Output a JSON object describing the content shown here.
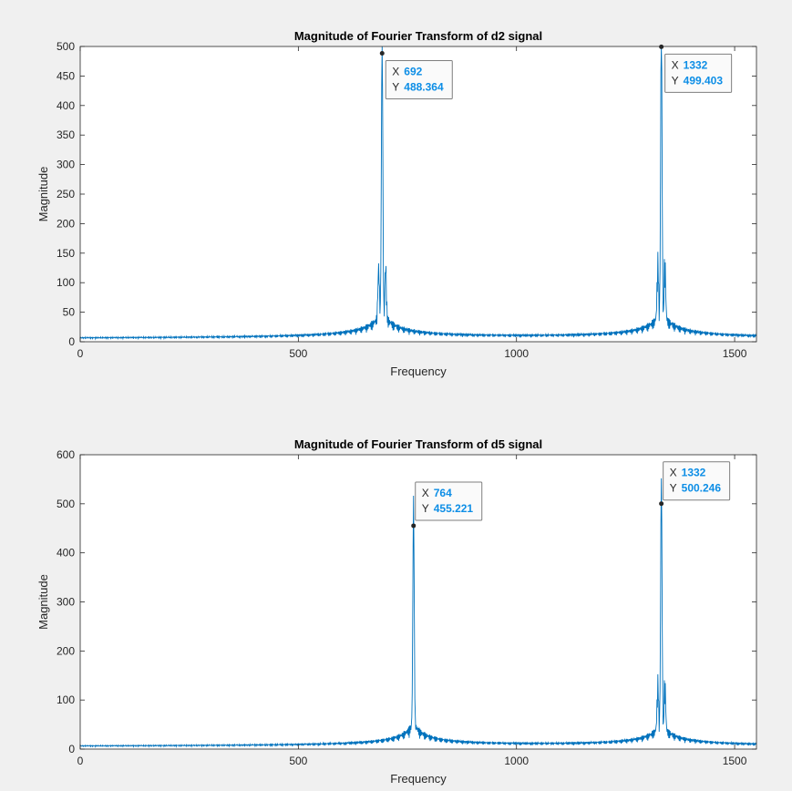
{
  "figure": {
    "background": "#f0f0f0",
    "line_color": "#0072bd"
  },
  "chart_data": [
    {
      "type": "line",
      "title": "Magnitude of Fourier Transform of d2 signal",
      "xlabel": "Frequency",
      "ylabel": "Magnitude",
      "xlim": [
        0,
        1550
      ],
      "ylim": [
        0,
        500
      ],
      "xticks": [
        0,
        500,
        1000,
        1500
      ],
      "yticks": [
        0,
        50,
        100,
        150,
        200,
        250,
        300,
        350,
        400,
        450,
        500
      ],
      "grid": false,
      "peaks": [
        {
          "x": 692,
          "y": 488.364,
          "sidelobe": 100
        },
        {
          "x": 1332,
          "y": 499.403,
          "sidelobe": 107
        }
      ],
      "datatips": [
        {
          "x_label": "692",
          "y_label": "488.364"
        },
        {
          "x_label": "1332",
          "y_label": "499.403"
        }
      ]
    },
    {
      "type": "line",
      "title": "Magnitude of Fourier Transform of d5 signal",
      "xlabel": "Frequency",
      "ylabel": "Magnitude",
      "xlim": [
        0,
        1550
      ],
      "ylim": [
        0,
        600
      ],
      "xticks": [
        0,
        500,
        1000,
        1500
      ],
      "yticks": [
        0,
        100,
        200,
        300,
        400,
        500,
        600
      ],
      "grid": false,
      "peaks": [
        {
          "x": 764,
          "y": 455.221,
          "sidelobe": 0
        },
        {
          "x": 1332,
          "y": 500.246,
          "sidelobe": 107
        }
      ],
      "datatips": [
        {
          "x_label": "764",
          "y_label": "455.221"
        },
        {
          "x_label": "1332",
          "y_label": "500.246"
        }
      ]
    }
  ]
}
